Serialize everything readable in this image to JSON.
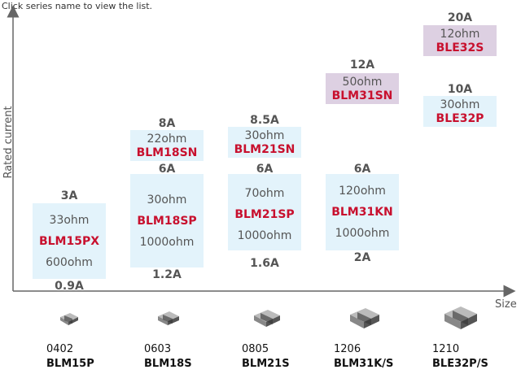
{
  "header": {
    "hint": "Click series name to view the list."
  },
  "chart_data": {
    "type": "table",
    "title": "",
    "ylabel": "Rated current",
    "xlabel": "Size",
    "categories": [
      {
        "size": "0402",
        "package": "BLM15P"
      },
      {
        "size": "0603",
        "package": "BLM18S"
      },
      {
        "size": "0805",
        "package": "BLM21S"
      },
      {
        "size": "1206",
        "package": "BLM31K/S"
      },
      {
        "size": "1210",
        "package": "BLE32P/S"
      }
    ],
    "series": [
      {
        "name": "BLM15PX",
        "size": "0402",
        "current_max": "3A",
        "current_min": "0.9A",
        "impedances": [
          "33ohm",
          "600ohm"
        ],
        "color": "#e3f3fb"
      },
      {
        "name": "BLM18SN",
        "size": "0603",
        "current_max": "8A",
        "impedances": [
          "22ohm"
        ],
        "color": "#e3f3fb"
      },
      {
        "name": "BLM18SP",
        "size": "0603",
        "current_max": "6A",
        "current_min": "1.2A",
        "impedances": [
          "30ohm",
          "1000ohm"
        ],
        "color": "#e3f3fb"
      },
      {
        "name": "BLM21SN",
        "size": "0805",
        "current_max": "8.5A",
        "impedances": [
          "30ohm"
        ],
        "color": "#e3f3fb"
      },
      {
        "name": "BLM21SP",
        "size": "0805",
        "current_max": "6A",
        "current_min": "1.6A",
        "impedances": [
          "70ohm",
          "1000ohm"
        ],
        "color": "#e3f3fb"
      },
      {
        "name": "BLM31SN",
        "size": "1206",
        "current_max": "12A",
        "impedances": [
          "50ohm"
        ],
        "color": "#ddd0e2"
      },
      {
        "name": "BLM31KN",
        "size": "1206",
        "current_max": "6A",
        "current_min": "2A",
        "impedances": [
          "120ohm",
          "1000ohm"
        ],
        "color": "#e3f3fb"
      },
      {
        "name": "BLE32S",
        "size": "1210",
        "current_max": "20A",
        "impedances": [
          "12ohm"
        ],
        "color": "#ddd0e2"
      },
      {
        "name": "BLE32P",
        "size": "1210",
        "current_max": "10A",
        "impedances": [
          "30ohm"
        ],
        "color": "#e3f3fb"
      }
    ]
  }
}
